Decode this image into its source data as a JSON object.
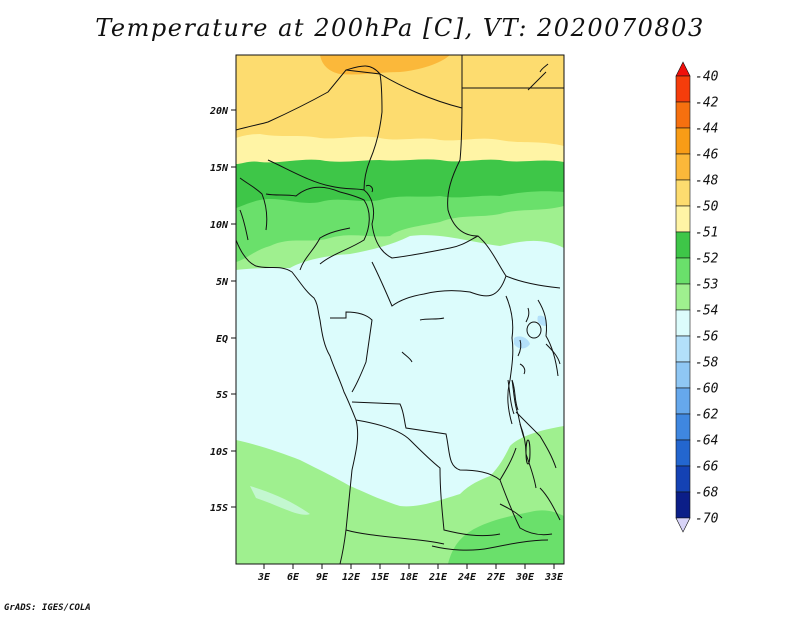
{
  "title": "Temperature at 200hPa [C], VT: 2020070803",
  "credit": "GrADS: IGES/COLA",
  "lat_labels": [
    "20N",
    "15N",
    "10N",
    "5N",
    "EQ",
    "5S",
    "10S",
    "15S"
  ],
  "lon_labels": [
    "3E",
    "6E",
    "9E",
    "12E",
    "15E",
    "18E",
    "21E",
    "24E",
    "27E",
    "30E",
    "33E"
  ],
  "colorbar": {
    "labels": [
      "-40",
      "-42",
      "-44",
      "-46",
      "-48",
      "-50",
      "-51",
      "-52",
      "-53",
      "-54",
      "-56",
      "-58",
      "-60",
      "-62",
      "-64",
      "-66",
      "-68",
      "-70"
    ],
    "colors": [
      "#f00f0b",
      "#f53d0b",
      "#f6700f",
      "#f89c16",
      "#fbb83a",
      "#fddc6f",
      "#fff4a5",
      "#3ec648",
      "#6ae06b",
      "#9ff08f",
      "#dcfcfc",
      "#b3e0fa",
      "#8fc7f4",
      "#66a8ec",
      "#3f87e0",
      "#2366cf",
      "#1442b4",
      "#0b1e88",
      "#d8d4f8"
    ]
  },
  "map": {
    "type": "filled-contour",
    "region": "Central Africa",
    "lon_range": [
      0,
      34
    ],
    "lat_range": [
      -20,
      25
    ],
    "projection": "latlon"
  }
}
